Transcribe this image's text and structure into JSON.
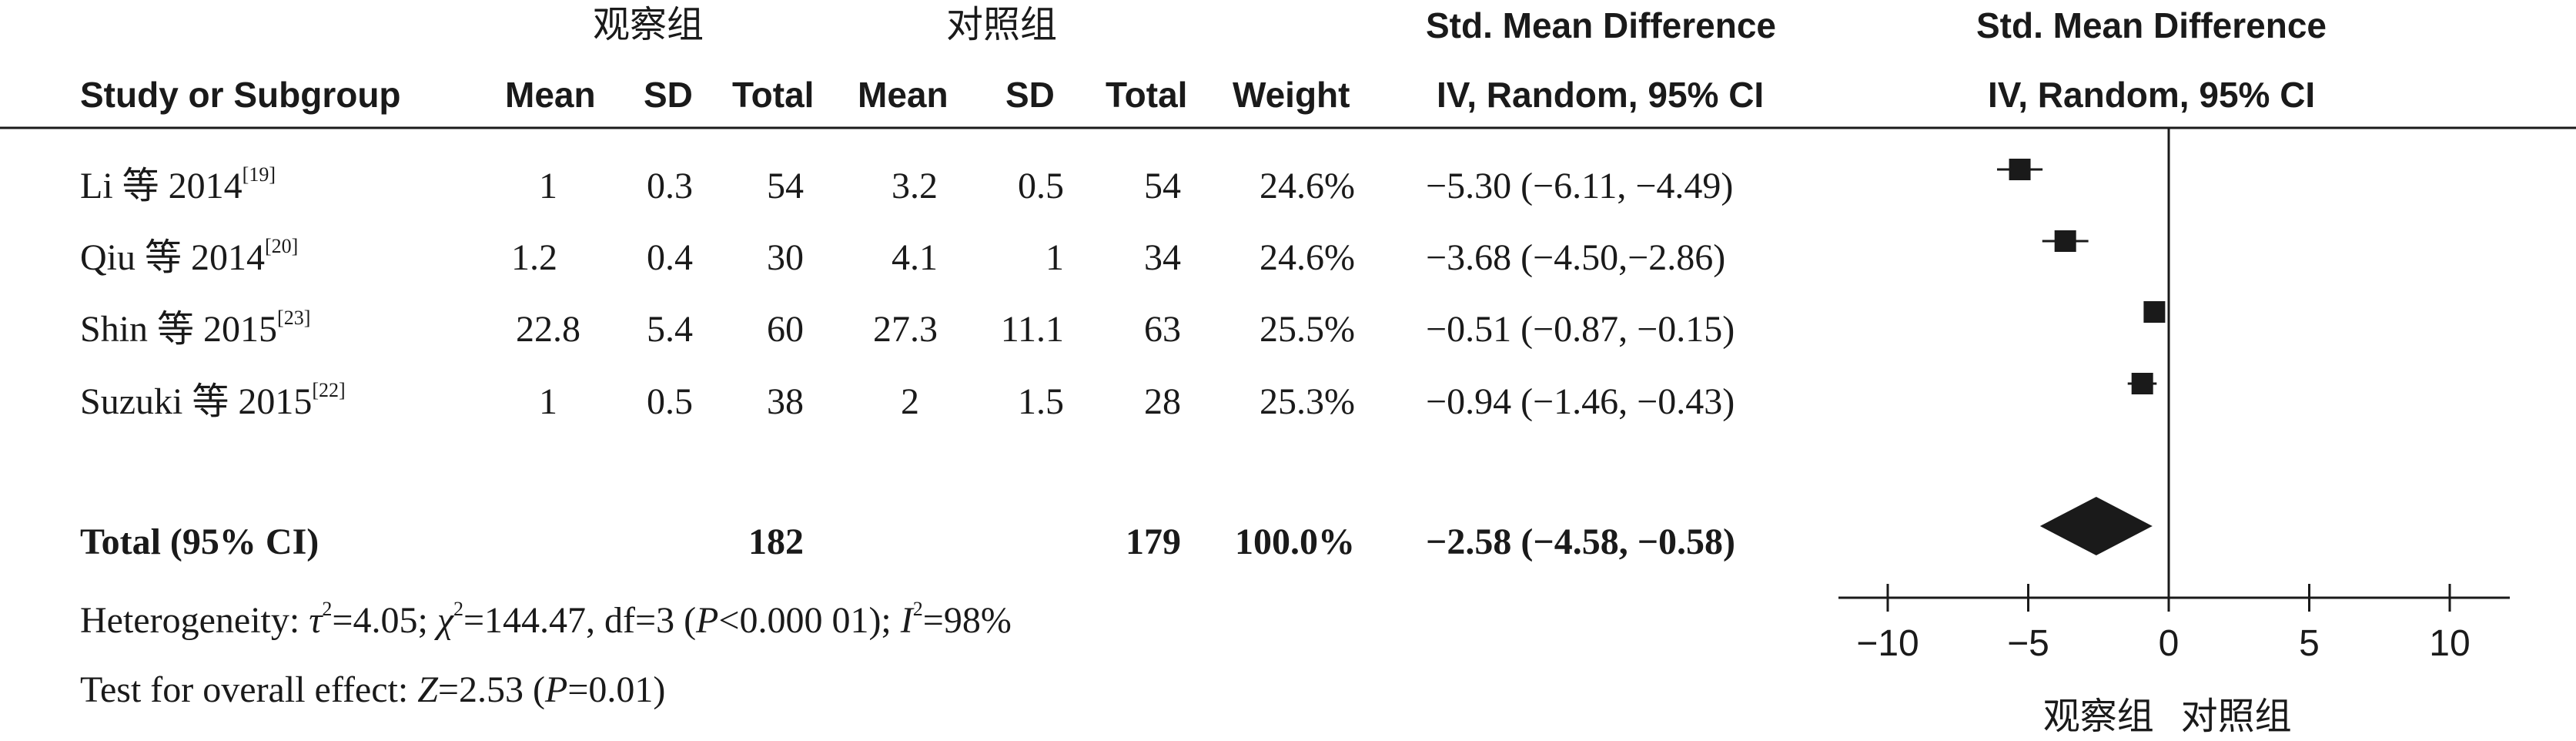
{
  "header": {
    "group_left": "观察组",
    "group_right": "对照组",
    "effect_title_1": "Std. Mean Difference",
    "effect_title_2": "Std. Mean Difference",
    "col_study": "Study or Subgroup",
    "col_mean1": "Mean",
    "col_sd1": "SD",
    "col_total1": "Total",
    "col_mean2": "Mean",
    "col_sd2": "SD",
    "col_total2": "Total",
    "col_weight": "Weight",
    "col_ci": "IV, Random, 95% CI",
    "col_plot": "IV, Random, 95% CI"
  },
  "studies": [
    {
      "name": "Li 等 2014",
      "ref": "[19]",
      "mean1": "1",
      "sd1": "0.3",
      "total1": "54",
      "mean2": "3.2",
      "sd2": "0.5",
      "total2": "54",
      "weight": "24.6%",
      "ci": "−5.30 (−6.11, −4.49)"
    },
    {
      "name": "Qiu 等 2014",
      "ref": "[20]",
      "mean1": "1.2",
      "sd1": "0.4",
      "total1": "30",
      "mean2": "4.1",
      "sd2": "1",
      "total2": "34",
      "weight": "24.6%",
      "ci": "−3.68 (−4.50,−2.86)"
    },
    {
      "name": "Shin 等 2015",
      "ref": "[23]",
      "mean1": "22.8",
      "sd1": "5.4",
      "total1": "60",
      "mean2": "27.3",
      "sd2": "11.1",
      "total2": "63",
      "weight": "25.5%",
      "ci": "−0.51 (−0.87, −0.15)"
    },
    {
      "name": "Suzuki 等 2015",
      "ref": "[22]",
      "mean1": "1",
      "sd1": "0.5",
      "total1": "38",
      "mean2": "2",
      "sd2": "1.5",
      "total2": "28",
      "weight": "25.3%",
      "ci": "−0.94 (−1.46, −0.43)"
    }
  ],
  "total": {
    "label": "Total (95% CI)",
    "total1": "182",
    "total2": "179",
    "weight": "100.0%",
    "ci": "−2.58 (−4.58, −0.58)"
  },
  "heterogeneity": {
    "prefix": "Heterogeneity: ",
    "tau_sym": "τ",
    "tau_val": "=4.05; ",
    "chi_sym": "χ",
    "chi_val": "=144.47, df=3 (",
    "p_sym": "P",
    "p_val": "<0.000 01); ",
    "i_sym": "I",
    "i_val": "=98%",
    "sq": "2"
  },
  "overall": {
    "prefix": "Test for overall effect: ",
    "z_sym": "Z",
    "z_val": "=2.53 (",
    "p_sym": "P",
    "p_val": "=0.01)"
  },
  "chart_data": {
    "type": "forest",
    "xlim": [
      -10,
      10
    ],
    "xticks": [
      -10,
      -5,
      0,
      5,
      10
    ],
    "xtick_labels": [
      "−10",
      "−5",
      "0",
      "5",
      "10"
    ],
    "axis_label_left": "观察组",
    "axis_label_right": "对照组",
    "studies": [
      {
        "name": "Li 等 2014",
        "estimate": -5.3,
        "lower": -6.11,
        "upper": -4.49,
        "weight": 24.6
      },
      {
        "name": "Qiu 等 2014",
        "estimate": -3.68,
        "lower": -4.5,
        "upper": -2.86,
        "weight": 24.6
      },
      {
        "name": "Shin 等 2015",
        "estimate": -0.51,
        "lower": -0.87,
        "upper": -0.15,
        "weight": 25.5
      },
      {
        "name": "Suzuki 等 2015",
        "estimate": -0.94,
        "lower": -1.46,
        "upper": -0.43,
        "weight": 25.3
      }
    ],
    "pooled": {
      "estimate": -2.58,
      "lower": -4.58,
      "upper": -0.58
    },
    "colors": {
      "marker": "#1a1a1a",
      "line": "#1a1a1a"
    }
  }
}
